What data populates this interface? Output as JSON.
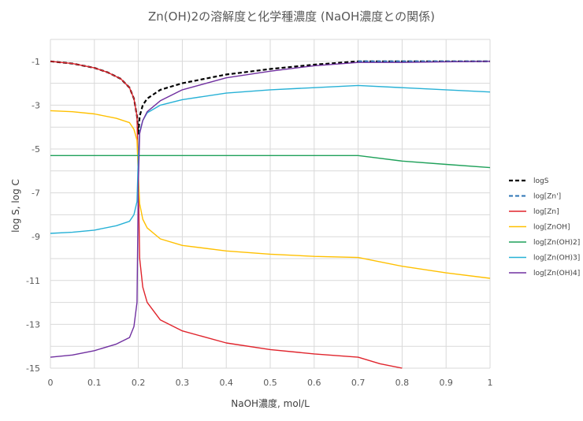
{
  "chart_data": {
    "type": "line",
    "title": "Zn(OH)2の溶解度と化学種濃度 (NaOH濃度との関係)",
    "xlabel": "NaOH濃度, mol/L",
    "ylabel": "log S, log C",
    "xlim": [
      0,
      1
    ],
    "ylim": [
      -15,
      0
    ],
    "x_ticks": [
      "0",
      "0.1",
      "0.2",
      "0.3",
      "0.4",
      "0.5",
      "0.6",
      "0.7",
      "0.8",
      "0.9",
      "1"
    ],
    "y_ticks": [
      "-1",
      "-3",
      "-5",
      "-7",
      "-9",
      "-11",
      "-13",
      "-15"
    ],
    "y_tick_values": [
      -1,
      -3,
      -5,
      -7,
      -9,
      -11,
      -13,
      -15
    ],
    "grid": true,
    "legend_position": "right",
    "series": [
      {
        "name": "logS",
        "color": "#000000",
        "dashed": true,
        "width": 2.2,
        "x": [
          0,
          0.05,
          0.1,
          0.13,
          0.16,
          0.18,
          0.19,
          0.197,
          0.2,
          0.203,
          0.21,
          0.22,
          0.25,
          0.3,
          0.4,
          0.5,
          0.6,
          0.7,
          0.8,
          0.9,
          1.0
        ],
        "y": [
          -1.0,
          -1.1,
          -1.3,
          -1.5,
          -1.8,
          -2.2,
          -2.7,
          -3.5,
          -4.3,
          -3.5,
          -3.0,
          -2.7,
          -2.3,
          -2.0,
          -1.6,
          -1.35,
          -1.15,
          -1.0,
          -1.0,
          -1.0,
          -1.0
        ]
      },
      {
        "name": "log[Zn']",
        "color": "#2e75b6",
        "dashed": true,
        "width": 2.0,
        "x": [
          0.7,
          0.8,
          0.9,
          1.0
        ],
        "y": [
          -1.0,
          -1.0,
          -1.0,
          -1.0
        ]
      },
      {
        "name": "log[Zn]",
        "color": "#e0242c",
        "dashed": false,
        "width": 1.4,
        "x": [
          0,
          0.05,
          0.1,
          0.13,
          0.16,
          0.18,
          0.19,
          0.197,
          0.2,
          0.203,
          0.21,
          0.22,
          0.25,
          0.3,
          0.4,
          0.5,
          0.6,
          0.7,
          0.75,
          0.8
        ],
        "y": [
          -1.0,
          -1.1,
          -1.3,
          -1.5,
          -1.8,
          -2.2,
          -2.7,
          -3.5,
          -6.5,
          -10.0,
          -11.3,
          -12.0,
          -12.8,
          -13.3,
          -13.85,
          -14.15,
          -14.35,
          -14.5,
          -14.8,
          -15.0
        ]
      },
      {
        "name": "log[ZnOH]",
        "color": "#ffc000",
        "dashed": false,
        "width": 1.4,
        "x": [
          0,
          0.05,
          0.1,
          0.15,
          0.18,
          0.19,
          0.197,
          0.2,
          0.203,
          0.21,
          0.22,
          0.25,
          0.3,
          0.4,
          0.5,
          0.6,
          0.7,
          0.8,
          0.9,
          1.0
        ],
        "y": [
          -3.25,
          -3.3,
          -3.4,
          -3.6,
          -3.8,
          -4.1,
          -4.6,
          -6.2,
          -7.5,
          -8.2,
          -8.6,
          -9.1,
          -9.4,
          -9.65,
          -9.8,
          -9.9,
          -9.95,
          -10.35,
          -10.65,
          -10.9
        ]
      },
      {
        "name": "log[Zn(OH)2]",
        "color": "#1fa15a",
        "dashed": false,
        "width": 1.4,
        "x": [
          0,
          0.1,
          0.2,
          0.3,
          0.4,
          0.5,
          0.6,
          0.7,
          0.8,
          0.9,
          1.0
        ],
        "y": [
          -5.3,
          -5.3,
          -5.3,
          -5.3,
          -5.3,
          -5.3,
          -5.3,
          -5.3,
          -5.55,
          -5.7,
          -5.85
        ]
      },
      {
        "name": "log[Zn(OH)3]",
        "color": "#27b1d6",
        "dashed": false,
        "width": 1.4,
        "x": [
          0,
          0.05,
          0.1,
          0.15,
          0.18,
          0.19,
          0.197,
          0.2,
          0.203,
          0.21,
          0.22,
          0.25,
          0.3,
          0.4,
          0.5,
          0.6,
          0.7,
          0.8,
          0.9,
          1.0
        ],
        "y": [
          -8.85,
          -8.8,
          -8.7,
          -8.5,
          -8.3,
          -8.0,
          -7.4,
          -5.3,
          -4.2,
          -3.7,
          -3.35,
          -3.0,
          -2.75,
          -2.45,
          -2.3,
          -2.2,
          -2.1,
          -2.2,
          -2.3,
          -2.4
        ]
      },
      {
        "name": "log[Zn(OH)4]",
        "color": "#7030a0",
        "dashed": false,
        "width": 1.4,
        "x": [
          0,
          0.05,
          0.1,
          0.15,
          0.18,
          0.19,
          0.197,
          0.2,
          0.203,
          0.21,
          0.22,
          0.25,
          0.3,
          0.4,
          0.5,
          0.6,
          0.7,
          0.8,
          0.9,
          1.0
        ],
        "y": [
          -14.5,
          -14.4,
          -14.2,
          -13.9,
          -13.6,
          -13.1,
          -12.0,
          -6.5,
          -4.3,
          -3.7,
          -3.3,
          -2.8,
          -2.3,
          -1.75,
          -1.45,
          -1.2,
          -1.05,
          -1.05,
          -1.02,
          -1.0
        ]
      }
    ]
  }
}
